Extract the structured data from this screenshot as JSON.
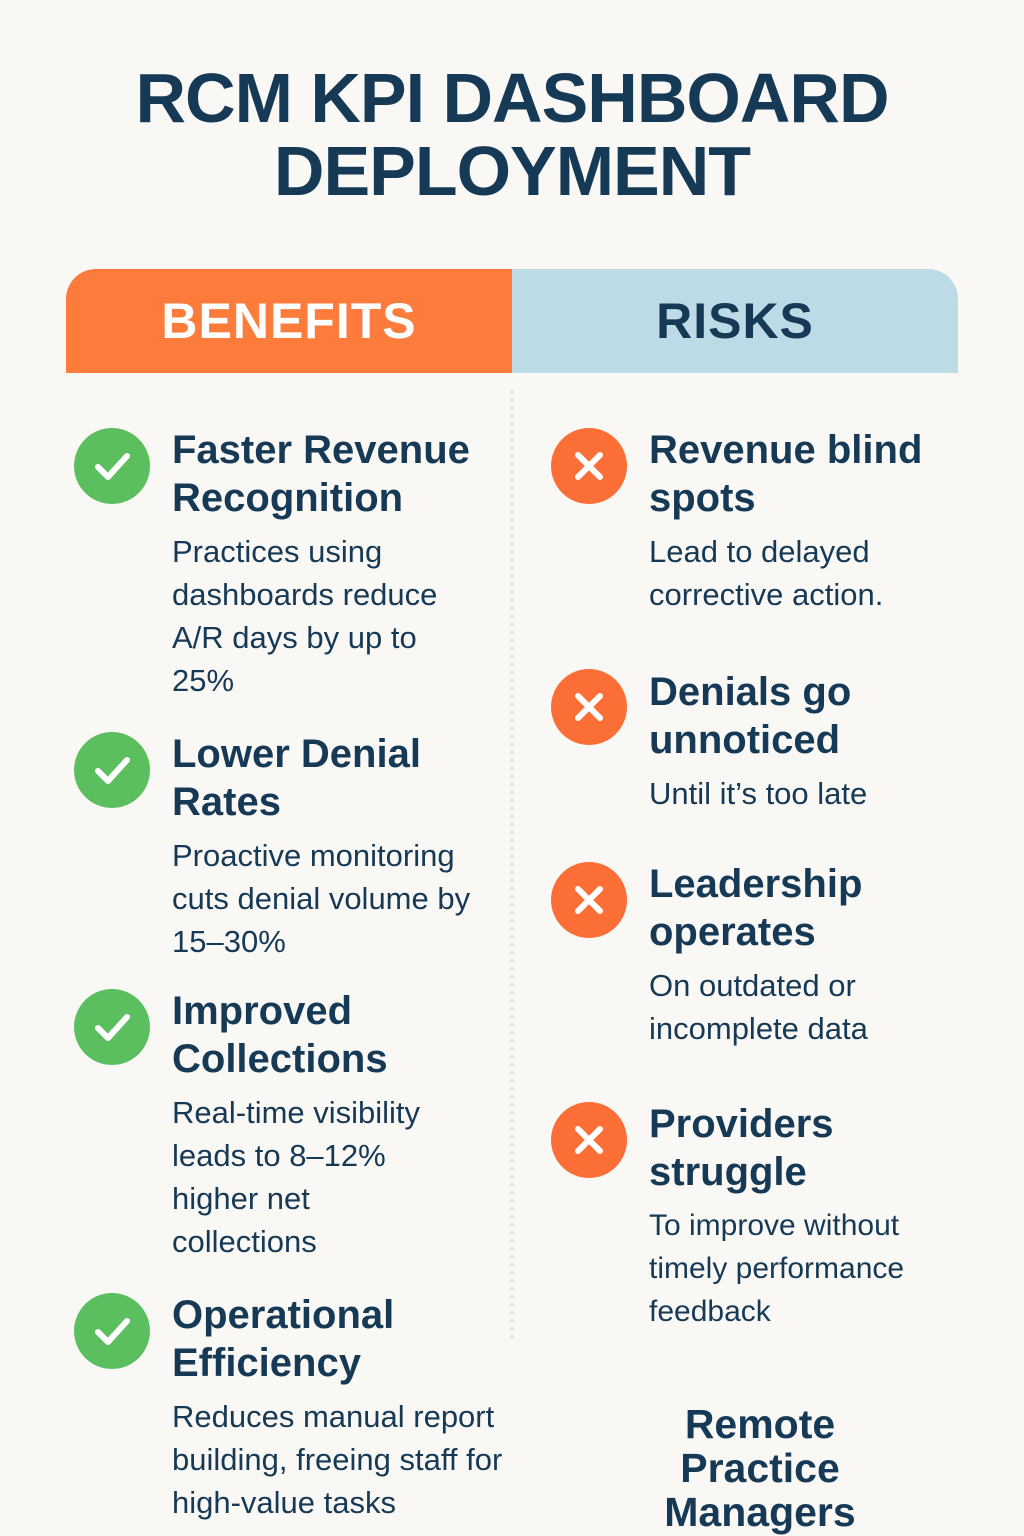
{
  "title": {
    "line1": "RCM KPI DASHBOARD",
    "line2": "DEPLOYMENT"
  },
  "colors": {
    "benefits": "#fd7c3b",
    "risks": "#bddbe7",
    "check": "#5cbf5f",
    "cross": "#fb6f36",
    "text": "#163a56"
  },
  "benefits": {
    "header": "BENEFITS",
    "icon": "check-circle-icon",
    "items": [
      {
        "title": "Faster Revenue Recognition",
        "desc": "Practices using dashboards reduce A/R days by up to 25%"
      },
      {
        "title": "Lower Denial Rates",
        "desc": "Proactive monitoring cuts denial volume by 15–30%"
      },
      {
        "title": "Improved Collections",
        "desc": "Real-time visibility leads to 8–12% higher net collections"
      },
      {
        "title": "Operational Efficiency",
        "desc": "Reduces manual report building, freeing staff for high-value tasks"
      }
    ]
  },
  "risks": {
    "header": "RISKS",
    "icon": "x-circle-icon",
    "items": [
      {
        "title": "Revenue blind spots",
        "desc": "Lead to delayed corrective action."
      },
      {
        "title": "Denials go unnoticed",
        "desc": "Until it’s too late"
      },
      {
        "title": "Leadership operates",
        "desc": "On outdated or incomplete data"
      },
      {
        "title": "Providers struggle",
        "desc": "To improve without timely performance feedback"
      }
    ]
  },
  "footer": {
    "brand": "Remote Practice Managers"
  }
}
